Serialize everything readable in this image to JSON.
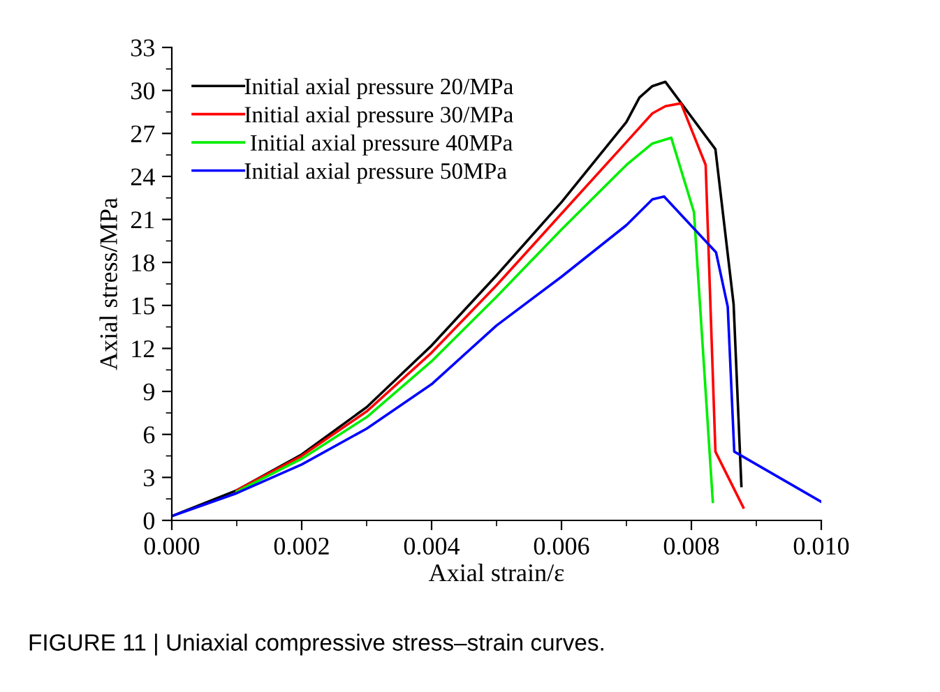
{
  "chart_data": {
    "type": "line",
    "xlabel": "Axial strain/ε",
    "ylabel": "Axial stress/MPa",
    "annotations": [
      "FIGURE 11 | Uniaxial compressive stress–strain curves."
    ],
    "xlim": [
      0,
      0.01
    ],
    "xticks": [
      {
        "value": 0,
        "label": "0.000"
      },
      {
        "value": 0.002,
        "label": "0.002"
      },
      {
        "value": 0.004,
        "label": "0.004"
      },
      {
        "value": 0.006,
        "label": "0.006"
      },
      {
        "value": 0.008,
        "label": "0.008"
      },
      {
        "value": 0.01,
        "label": "0.010"
      }
    ],
    "ylim": [
      0,
      33
    ],
    "yticks": [
      0,
      3,
      6,
      9,
      12,
      15,
      18,
      21,
      24,
      27,
      30,
      33
    ],
    "legend": "top left",
    "grid": false,
    "marker": "none",
    "line_style": "solid",
    "series": [
      {
        "name": "Initial axial pressure 20/MPa",
        "color": "#000000",
        "x": [
          0,
          0.001,
          0.002,
          0.003,
          0.004,
          0.005,
          0.006,
          0.007,
          0.0072,
          0.0074,
          0.0076,
          0.00837,
          0.00865,
          0.00877
        ],
        "values": [
          0.3,
          2.1,
          4.6,
          7.9,
          12.2,
          17.1,
          22.2,
          27.8,
          29.5,
          30.3,
          30.6,
          25.9,
          15.1,
          2.4
        ]
      },
      {
        "name": "Initial axial pressure 30/MPa",
        "color": "#ff0000",
        "x": [
          0.001,
          0.002,
          0.003,
          0.004,
          0.005,
          0.006,
          0.007,
          0.0074,
          0.0076,
          0.00784,
          0.00822,
          0.00837,
          0.0088
        ],
        "values": [
          2.1,
          4.5,
          7.6,
          11.7,
          16.4,
          21.4,
          26.4,
          28.4,
          28.9,
          29.1,
          24.8,
          4.8,
          0.9
        ]
      },
      {
        "name": " Initial axial pressure 40MPa",
        "color": "#00ee00",
        "x": [
          0.001,
          0.002,
          0.003,
          0.004,
          0.005,
          0.006,
          0.007,
          0.0074,
          0.00769,
          0.00804,
          0.00833
        ],
        "values": [
          2.0,
          4.3,
          7.2,
          11.1,
          15.6,
          20.3,
          24.8,
          26.3,
          26.7,
          21.5,
          1.3
        ]
      },
      {
        "name": "Initial axial pressure 50MPa",
        "color": "#0000ff",
        "x": [
          0,
          0.001,
          0.002,
          0.003,
          0.004,
          0.005,
          0.006,
          0.007,
          0.0074,
          0.00758,
          0.00838,
          0.00856,
          0.00866,
          0.01
        ],
        "values": [
          0.3,
          1.9,
          3.9,
          6.4,
          9.5,
          13.6,
          17.0,
          20.6,
          22.4,
          22.6,
          18.7,
          14.9,
          4.8,
          1.3
        ]
      }
    ]
  }
}
